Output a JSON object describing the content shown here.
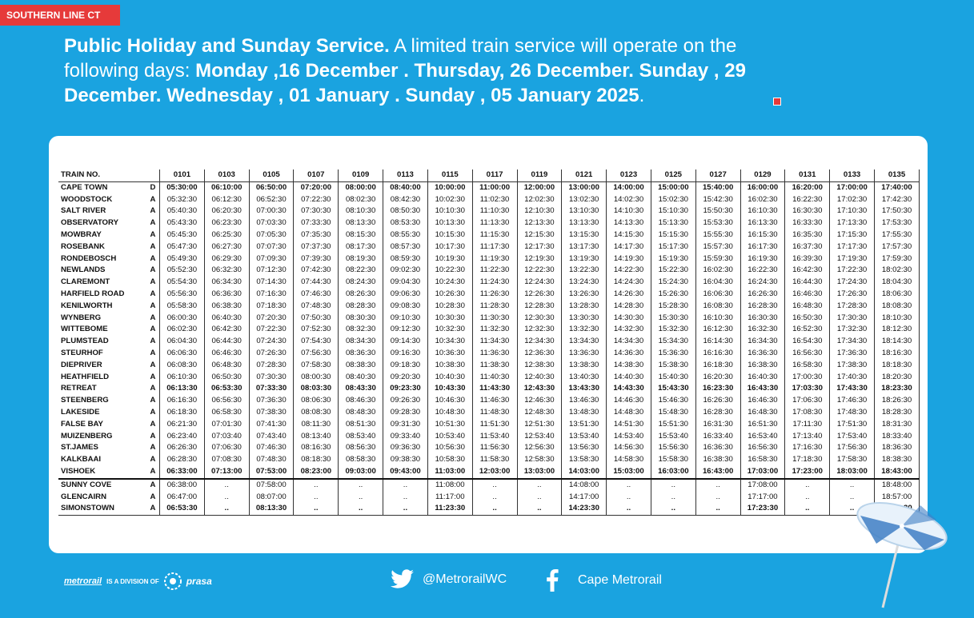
{
  "tag": "SOUTHERN LINE CT",
  "headline": {
    "bold_title": "Public Holiday and Sunday  Service.",
    "text": " A limited train service will operate on the following days: ",
    "bold_days": "Monday ,16 December . Thursday, 26 December. Sunday , 29 December. Wednesday , 01 January . Sunday , 05 January 2025",
    "end": "."
  },
  "table": {
    "header_label": "TRAIN NO.",
    "trains": [
      "0101",
      "0103",
      "0105",
      "0107",
      "0109",
      "0113",
      "0115",
      "0117",
      "0119",
      "0121",
      "0123",
      "0125",
      "0127",
      "0129",
      "0131",
      "0133",
      "0135"
    ],
    "rows": [
      {
        "station": "CAPE TOWN",
        "code": "D",
        "bold": true,
        "times": [
          "05:30:00",
          "06:10:00",
          "06:50:00",
          "07:20:00",
          "08:00:00",
          "08:40:00",
          "10:00:00",
          "11:00:00",
          "12:00:00",
          "13:00:00",
          "14:00:00",
          "15:00:00",
          "15:40:00",
          "16:00:00",
          "16:20:00",
          "17:00:00",
          "17:40:00"
        ]
      },
      {
        "station": "WOODSTOCK",
        "code": "A",
        "times": [
          "05:32:30",
          "06:12:30",
          "06:52:30",
          "07:22:30",
          "08:02:30",
          "08:42:30",
          "10:02:30",
          "11:02:30",
          "12:02:30",
          "13:02:30",
          "14:02:30",
          "15:02:30",
          "15:42:30",
          "16:02:30",
          "16:22:30",
          "17:02:30",
          "17:42:30"
        ]
      },
      {
        "station": "SALT RIVER",
        "code": "A",
        "times": [
          "05:40:30",
          "06:20:30",
          "07:00:30",
          "07:30:30",
          "08:10:30",
          "08:50:30",
          "10:10:30",
          "11:10:30",
          "12:10:30",
          "13:10:30",
          "14:10:30",
          "15:10:30",
          "15:50:30",
          "16:10:30",
          "16:30:30",
          "17:10:30",
          "17:50:30"
        ]
      },
      {
        "station": "OBSERVATORY",
        "code": "A",
        "times": [
          "05:43:30",
          "06:23:30",
          "07:03:30",
          "07:33:30",
          "08:13:30",
          "08:53:30",
          "10:13:30",
          "11:13:30",
          "12:13:30",
          "13:13:30",
          "14:13:30",
          "15:13:30",
          "15:53:30",
          "16:13:30",
          "16:33:30",
          "17:13:30",
          "17:53:30"
        ]
      },
      {
        "station": "MOWBRAY",
        "code": "A",
        "times": [
          "05:45:30",
          "06:25:30",
          "07:05:30",
          "07:35:30",
          "08:15:30",
          "08:55:30",
          "10:15:30",
          "11:15:30",
          "12:15:30",
          "13:15:30",
          "14:15:30",
          "15:15:30",
          "15:55:30",
          "16:15:30",
          "16:35:30",
          "17:15:30",
          "17:55:30"
        ]
      },
      {
        "station": "ROSEBANK",
        "code": "A",
        "times": [
          "05:47:30",
          "06:27:30",
          "07:07:30",
          "07:37:30",
          "08:17:30",
          "08:57:30",
          "10:17:30",
          "11:17:30",
          "12:17:30",
          "13:17:30",
          "14:17:30",
          "15:17:30",
          "15:57:30",
          "16:17:30",
          "16:37:30",
          "17:17:30",
          "17:57:30"
        ]
      },
      {
        "station": "RONDEBOSCH",
        "code": "A",
        "times": [
          "05:49:30",
          "06:29:30",
          "07:09:30",
          "07:39:30",
          "08:19:30",
          "08:59:30",
          "10:19:30",
          "11:19:30",
          "12:19:30",
          "13:19:30",
          "14:19:30",
          "15:19:30",
          "15:59:30",
          "16:19:30",
          "16:39:30",
          "17:19:30",
          "17:59:30"
        ]
      },
      {
        "station": "NEWLANDS",
        "code": "A",
        "times": [
          "05:52:30",
          "06:32:30",
          "07:12:30",
          "07:42:30",
          "08:22:30",
          "09:02:30",
          "10:22:30",
          "11:22:30",
          "12:22:30",
          "13:22:30",
          "14:22:30",
          "15:22:30",
          "16:02:30",
          "16:22:30",
          "16:42:30",
          "17:22:30",
          "18:02:30"
        ]
      },
      {
        "station": "CLAREMONT",
        "code": "A",
        "times": [
          "05:54:30",
          "06:34:30",
          "07:14:30",
          "07:44:30",
          "08:24:30",
          "09:04:30",
          "10:24:30",
          "11:24:30",
          "12:24:30",
          "13:24:30",
          "14:24:30",
          "15:24:30",
          "16:04:30",
          "16:24:30",
          "16:44:30",
          "17:24:30",
          "18:04:30"
        ]
      },
      {
        "station": "HARFIELD ROAD",
        "code": "A",
        "times": [
          "05:56:30",
          "06:36:30",
          "07:16:30",
          "07:46:30",
          "08:26:30",
          "09:06:30",
          "10:26:30",
          "11:26:30",
          "12:26:30",
          "13:26:30",
          "14:26:30",
          "15:26:30",
          "16:06:30",
          "16:26:30",
          "16:46:30",
          "17:26:30",
          "18:06:30"
        ]
      },
      {
        "station": "KENILWORTH",
        "code": "A",
        "times": [
          "05:58:30",
          "06:38:30",
          "07:18:30",
          "07:48:30",
          "08:28:30",
          "09:08:30",
          "10:28:30",
          "11:28:30",
          "12:28:30",
          "13:28:30",
          "14:28:30",
          "15:28:30",
          "16:08:30",
          "16:28:30",
          "16:48:30",
          "17:28:30",
          "18:08:30"
        ]
      },
      {
        "station": "WYNBERG",
        "code": "A",
        "times": [
          "06:00:30",
          "06:40:30",
          "07:20:30",
          "07:50:30",
          "08:30:30",
          "09:10:30",
          "10:30:30",
          "11:30:30",
          "12:30:30",
          "13:30:30",
          "14:30:30",
          "15:30:30",
          "16:10:30",
          "16:30:30",
          "16:50:30",
          "17:30:30",
          "18:10:30"
        ]
      },
      {
        "station": "WITTEBOME",
        "code": "A",
        "times": [
          "06:02:30",
          "06:42:30",
          "07:22:30",
          "07:52:30",
          "08:32:30",
          "09:12:30",
          "10:32:30",
          "11:32:30",
          "12:32:30",
          "13:32:30",
          "14:32:30",
          "15:32:30",
          "16:12:30",
          "16:32:30",
          "16:52:30",
          "17:32:30",
          "18:12:30"
        ]
      },
      {
        "station": "PLUMSTEAD",
        "code": "A",
        "times": [
          "06:04:30",
          "06:44:30",
          "07:24:30",
          "07:54:30",
          "08:34:30",
          "09:14:30",
          "10:34:30",
          "11:34:30",
          "12:34:30",
          "13:34:30",
          "14:34:30",
          "15:34:30",
          "16:14:30",
          "16:34:30",
          "16:54:30",
          "17:34:30",
          "18:14:30"
        ]
      },
      {
        "station": "STEURHOF",
        "code": "A",
        "times": [
          "06:06:30",
          "06:46:30",
          "07:26:30",
          "07:56:30",
          "08:36:30",
          "09:16:30",
          "10:36:30",
          "11:36:30",
          "12:36:30",
          "13:36:30",
          "14:36:30",
          "15:36:30",
          "16:16:30",
          "16:36:30",
          "16:56:30",
          "17:36:30",
          "18:16:30"
        ]
      },
      {
        "station": "DIEPRIVER",
        "code": "A",
        "times": [
          "06:08:30",
          "06:48:30",
          "07:28:30",
          "07:58:30",
          "08:38:30",
          "09:18:30",
          "10:38:30",
          "11:38:30",
          "12:38:30",
          "13:38:30",
          "14:38:30",
          "15:38:30",
          "16:18:30",
          "16:38:30",
          "16:58:30",
          "17:38:30",
          "18:18:30"
        ]
      },
      {
        "station": "HEATHFIELD",
        "code": "A",
        "times": [
          "06:10:30",
          "06:50:30",
          "07:30:30",
          "08:00:30",
          "08:40:30",
          "09:20:30",
          "10:40:30",
          "11:40:30",
          "12:40:30",
          "13:40:30",
          "14:40:30",
          "15:40:30",
          "16:20:30",
          "16:40:30",
          "17:00:30",
          "17:40:30",
          "18:20:30"
        ]
      },
      {
        "station": "RETREAT",
        "code": "A",
        "bold": true,
        "times": [
          "06:13:30",
          "06:53:30",
          "07:33:30",
          "08:03:30",
          "08:43:30",
          "09:23:30",
          "10:43:30",
          "11:43:30",
          "12:43:30",
          "13:43:30",
          "14:43:30",
          "15:43:30",
          "16:23:30",
          "16:43:30",
          "17:03:30",
          "17:43:30",
          "18:23:30"
        ]
      },
      {
        "station": "STEENBERG",
        "code": "A",
        "times": [
          "06:16:30",
          "06:56:30",
          "07:36:30",
          "08:06:30",
          "08:46:30",
          "09:26:30",
          "10:46:30",
          "11:46:30",
          "12:46:30",
          "13:46:30",
          "14:46:30",
          "15:46:30",
          "16:26:30",
          "16:46:30",
          "17:06:30",
          "17:46:30",
          "18:26:30"
        ]
      },
      {
        "station": "LAKESIDE",
        "code": "A",
        "times": [
          "06:18:30",
          "06:58:30",
          "07:38:30",
          "08:08:30",
          "08:48:30",
          "09:28:30",
          "10:48:30",
          "11:48:30",
          "12:48:30",
          "13:48:30",
          "14:48:30",
          "15:48:30",
          "16:28:30",
          "16:48:30",
          "17:08:30",
          "17:48:30",
          "18:28:30"
        ]
      },
      {
        "station": "FALSE BAY",
        "code": "A",
        "times": [
          "06:21:30",
          "07:01:30",
          "07:41:30",
          "08:11:30",
          "08:51:30",
          "09:31:30",
          "10:51:30",
          "11:51:30",
          "12:51:30",
          "13:51:30",
          "14:51:30",
          "15:51:30",
          "16:31:30",
          "16:51:30",
          "17:11:30",
          "17:51:30",
          "18:31:30"
        ]
      },
      {
        "station": "MUIZENBERG",
        "code": "A",
        "times": [
          "06:23:40",
          "07:03:40",
          "07:43:40",
          "08:13:40",
          "08:53:40",
          "09:33:40",
          "10:53:40",
          "11:53:40",
          "12:53:40",
          "13:53:40",
          "14:53:40",
          "15:53:40",
          "16:33:40",
          "16:53:40",
          "17:13:40",
          "17:53:40",
          "18:33:40"
        ]
      },
      {
        "station": "ST.JAMES",
        "code": "A",
        "times": [
          "06:26:30",
          "07:06:30",
          "07:46:30",
          "08:16:30",
          "08:56:30",
          "09:36:30",
          "10:56:30",
          "11:56:30",
          "12:56:30",
          "13:56:30",
          "14:56:30",
          "15:56:30",
          "16:36:30",
          "16:56:30",
          "17:16:30",
          "17:56:30",
          "18:36:30"
        ]
      },
      {
        "station": "KALKBAAI",
        "code": "A",
        "times": [
          "06:28:30",
          "07:08:30",
          "07:48:30",
          "08:18:30",
          "08:58:30",
          "09:38:30",
          "10:58:30",
          "11:58:30",
          "12:58:30",
          "13:58:30",
          "14:58:30",
          "15:58:30",
          "16:38:30",
          "16:58:30",
          "17:18:30",
          "17:58:30",
          "18:38:30"
        ]
      },
      {
        "station": "VISHOEK",
        "code": "A",
        "bold": true,
        "times": [
          "06:33:00",
          "07:13:00",
          "07:53:00",
          "08:23:00",
          "09:03:00",
          "09:43:00",
          "11:03:00",
          "12:03:00",
          "13:03:00",
          "14:03:00",
          "15:03:00",
          "16:03:00",
          "16:43:00",
          "17:03:00",
          "17:23:00",
          "18:03:00",
          "18:43:00"
        ]
      },
      {
        "station": "SUNNY COVE",
        "code": "A",
        "sep": true,
        "times": [
          "06:38:00",
          "..",
          "07:58:00",
          "..",
          "..",
          "..",
          "11:08:00",
          "..",
          "..",
          "14:08:00",
          "..",
          "..",
          "..",
          "17:08:00",
          "..",
          "..",
          "18:48:00"
        ]
      },
      {
        "station": "GLENCAIRN",
        "code": "A",
        "times": [
          "06:47:00",
          "..",
          "08:07:00",
          "..",
          "..",
          "..",
          "11:17:00",
          "..",
          "..",
          "14:17:00",
          "..",
          "..",
          "..",
          "17:17:00",
          "..",
          "..",
          "18:57:00"
        ]
      },
      {
        "station": "SIMONSTOWN",
        "code": "A",
        "bold": true,
        "times": [
          "06:53:30",
          "..",
          "08:13:30",
          "..",
          "..",
          "..",
          "11:23:30",
          "..",
          "..",
          "14:23:30",
          "..",
          "..",
          "..",
          "17:23:30",
          "..",
          "..",
          "19:03:30"
        ]
      }
    ]
  },
  "footer": {
    "brand": "metrorail",
    "division": "IS A DIVISION OF",
    "prasa": "prasa",
    "twitter": "@MetrorailWC",
    "facebook": "Cape Metrorail",
    "twitter_icon": "twitter-bird-icon",
    "facebook_icon": "facebook-f-icon"
  },
  "colors": {
    "background": "#1aa3e0",
    "tag": "#e63a3a",
    "card": "#ffffff"
  }
}
